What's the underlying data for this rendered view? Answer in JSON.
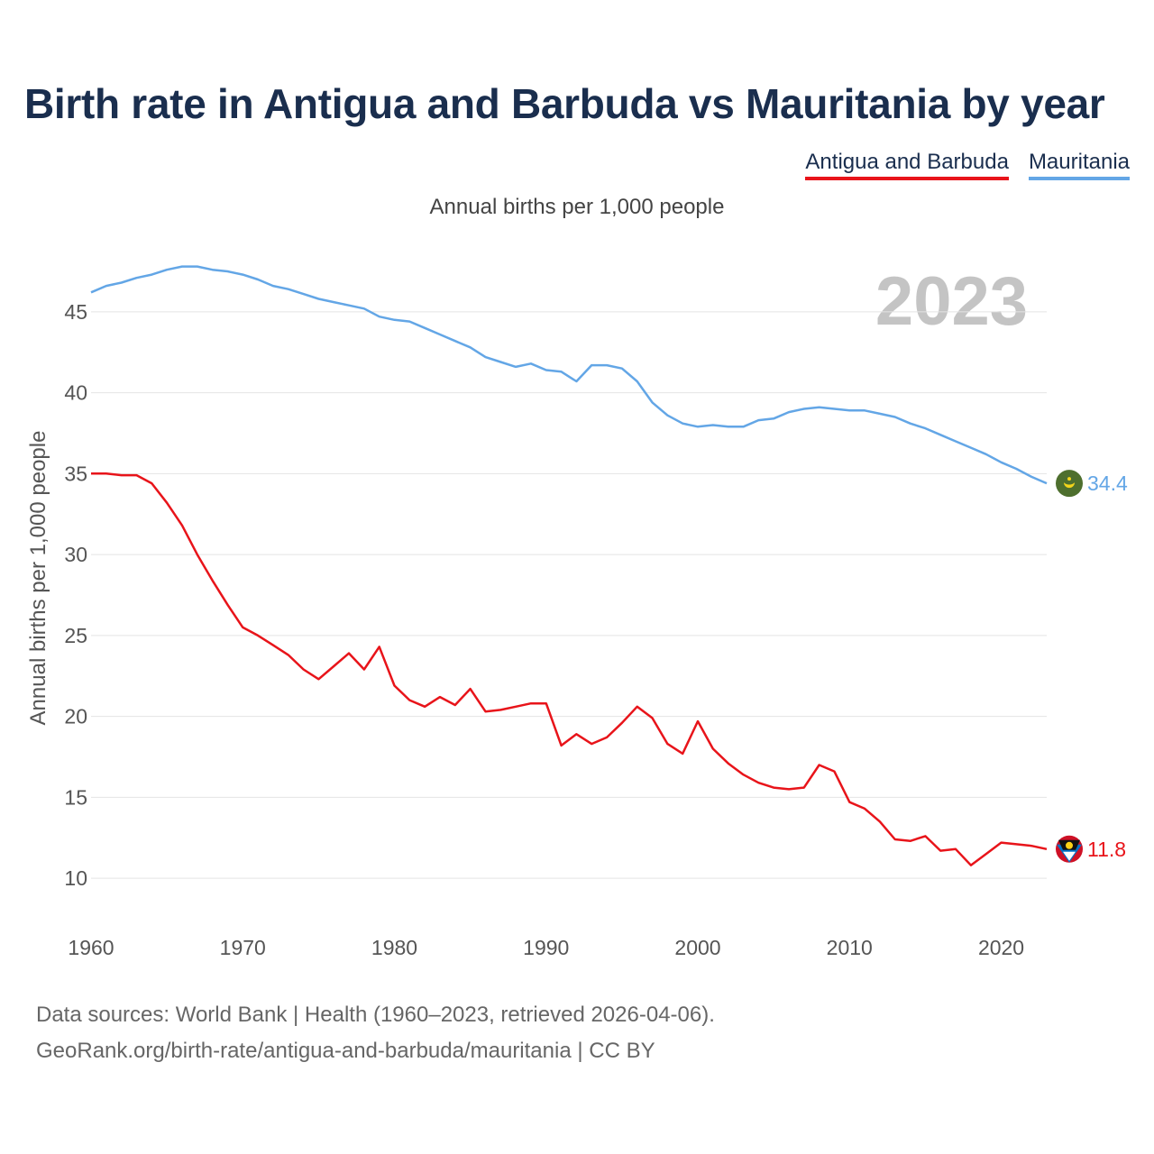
{
  "chart_data": {
    "type": "line",
    "title": "Birth rate in Antigua and Barbuda vs Mauritania by year",
    "subtitle": "Annual births per 1,000 people",
    "ylabel": "Annual births per 1,000 people",
    "xlabel": "",
    "year_watermark": "2023",
    "xlim": [
      1960,
      2023
    ],
    "ylim": [
      8,
      48
    ],
    "yticks": [
      10,
      15,
      20,
      25,
      30,
      35,
      40,
      45
    ],
    "xticks": [
      1960,
      1970,
      1980,
      1990,
      2000,
      2010,
      2020
    ],
    "grid": true,
    "legend_position": "top-right",
    "x": [
      1960,
      1961,
      1962,
      1963,
      1964,
      1965,
      1966,
      1967,
      1968,
      1969,
      1970,
      1971,
      1972,
      1973,
      1974,
      1975,
      1976,
      1977,
      1978,
      1979,
      1980,
      1981,
      1982,
      1983,
      1984,
      1985,
      1986,
      1987,
      1988,
      1989,
      1990,
      1991,
      1992,
      1993,
      1994,
      1995,
      1996,
      1997,
      1998,
      1999,
      2000,
      2001,
      2002,
      2003,
      2004,
      2005,
      2006,
      2007,
      2008,
      2009,
      2010,
      2011,
      2012,
      2013,
      2014,
      2015,
      2016,
      2017,
      2018,
      2019,
      2020,
      2021,
      2022,
      2023
    ],
    "series": [
      {
        "name": "Antigua and Barbuda",
        "color": "#e8141a",
        "end_label": "11.8",
        "flag": "antigua-and-barbuda-flag",
        "values": [
          35.0,
          35.0,
          34.9,
          34.9,
          34.4,
          33.2,
          31.8,
          30.0,
          28.4,
          26.9,
          25.5,
          25.0,
          24.4,
          23.8,
          22.9,
          22.3,
          23.1,
          23.9,
          22.9,
          24.3,
          21.9,
          21.0,
          20.6,
          21.2,
          20.7,
          21.7,
          20.3,
          20.4,
          20.6,
          20.8,
          20.8,
          18.2,
          18.9,
          18.3,
          18.7,
          19.6,
          20.6,
          19.9,
          18.3,
          17.7,
          19.7,
          18.0,
          17.1,
          16.4,
          15.9,
          15.6,
          15.5,
          15.6,
          17.0,
          16.6,
          14.7,
          14.3,
          13.5,
          12.4,
          12.3,
          12.6,
          11.7,
          11.8,
          10.8,
          11.5,
          12.2,
          12.1,
          12.0,
          11.8
        ]
      },
      {
        "name": "Mauritania",
        "color": "#63a6e6",
        "end_label": "34.4",
        "flag": "mauritania-flag",
        "values": [
          46.2,
          46.6,
          46.8,
          47.1,
          47.3,
          47.6,
          47.8,
          47.8,
          47.6,
          47.5,
          47.3,
          47.0,
          46.6,
          46.4,
          46.1,
          45.8,
          45.6,
          45.4,
          45.2,
          44.7,
          44.5,
          44.4,
          44.0,
          43.6,
          43.2,
          42.8,
          42.2,
          41.9,
          41.6,
          41.8,
          41.4,
          41.3,
          40.7,
          41.7,
          41.7,
          41.5,
          40.7,
          39.4,
          38.6,
          38.1,
          37.9,
          38.0,
          37.9,
          37.9,
          38.3,
          38.4,
          38.8,
          39.0,
          39.1,
          39.0,
          38.9,
          38.9,
          38.7,
          38.5,
          38.1,
          37.8,
          37.4,
          37.0,
          36.6,
          36.2,
          35.7,
          35.3,
          34.8,
          34.4
        ]
      }
    ]
  },
  "footer": {
    "line1": "Data sources: World Bank | Health (1960–2023, retrieved 2026-04-06).",
    "line2": "GeoRank.org/birth-rate/antigua-and-barbuda/mauritania | CC BY"
  }
}
